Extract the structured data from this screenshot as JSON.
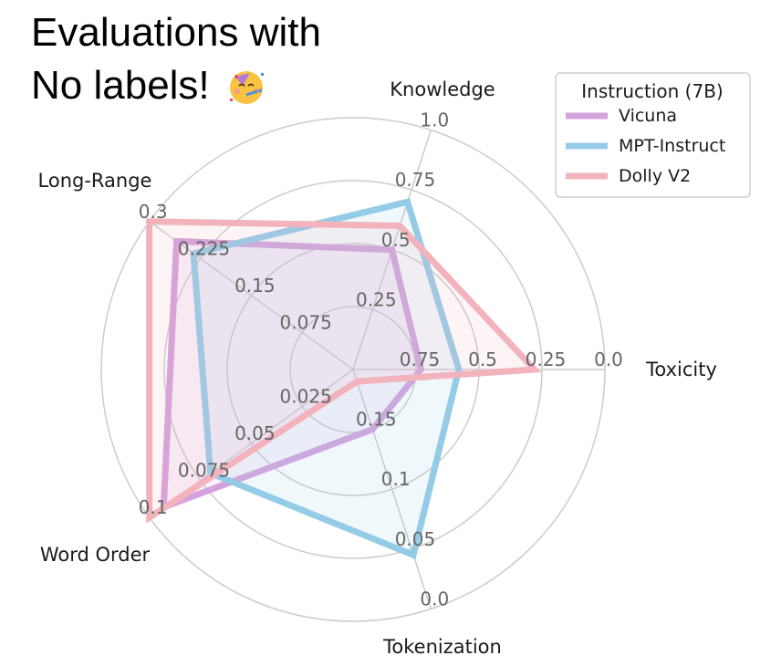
{
  "headline": {
    "line1": "Evaluations with",
    "line2": "No labels!",
    "emoji_icon": "partying-face-icon"
  },
  "chart_data": {
    "type": "radar",
    "axes": [
      {
        "name": "Knowledge",
        "ticks": [
          "1.0",
          "0.75",
          "0.5",
          "0.25"
        ],
        "range": [
          0,
          1.0
        ]
      },
      {
        "name": "Toxicity",
        "ticks": [
          "0.0",
          "0.25",
          "0.5",
          "0.75"
        ],
        "range": [
          1.0,
          0.0
        ]
      },
      {
        "name": "Tokenization",
        "ticks": [
          "0.0",
          "0.05",
          "0.1",
          "0.15"
        ],
        "range": [
          0.2,
          0.0
        ]
      },
      {
        "name": "Word Order",
        "ticks": [
          "0.1",
          "0.075",
          "0.05",
          "0.025"
        ],
        "range": [
          0,
          0.1
        ]
      },
      {
        "name": "Long-Range",
        "ticks": [
          "0.3",
          "0.225",
          "0.15",
          "0.075"
        ],
        "range": [
          0,
          0.3
        ]
      }
    ],
    "legend": {
      "title": "Instruction (7B)",
      "position": "top-right"
    },
    "series": [
      {
        "name": "Vicuna",
        "color": "#d4a2dd",
        "values": {
          "Knowledge": 0.5,
          "Toxicity": 0.73,
          "Tokenization": 0.15,
          "Word Order": 0.093,
          "Long-Range": 0.26
        }
      },
      {
        "name": "MPT-Instruct",
        "color": "#94cbe7",
        "values": {
          "Knowledge": 0.7,
          "Toxicity": 0.58,
          "Tokenization": 0.045,
          "Word Order": 0.07,
          "Long-Range": 0.235
        }
      },
      {
        "name": "Dolly V2",
        "color": "#f2b3bd",
        "values": {
          "Knowledge": 0.6,
          "Toxicity": 0.28,
          "Tokenization": 0.19,
          "Word Order": 0.1,
          "Long-Range": 0.3
        }
      }
    ],
    "grid": true
  }
}
